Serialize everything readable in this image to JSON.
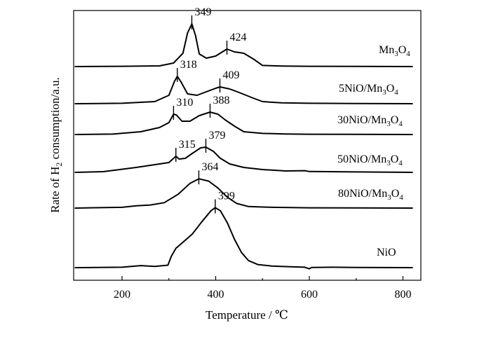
{
  "chart_data": {
    "type": "line",
    "xlabel": "Temperature / ℃",
    "ylabel_parts": [
      "Rate of H",
      "2",
      " consumption/a.u."
    ],
    "xlim": [
      100,
      830
    ],
    "xticks": [
      200,
      400,
      600,
      800
    ],
    "yticks_shown": false,
    "grid": false,
    "series": [
      {
        "name_parts": [
          "Mn",
          "3",
          "O",
          "4"
        ],
        "offset": 0,
        "peaks": [
          349,
          424
        ],
        "points": [
          [
            100,
            0
          ],
          [
            200,
            0.02
          ],
          [
            280,
            0.05
          ],
          [
            310,
            0.25
          ],
          [
            330,
            0.95
          ],
          [
            340,
            2.4
          ],
          [
            349,
            3.05
          ],
          [
            357,
            2.2
          ],
          [
            365,
            0.9
          ],
          [
            380,
            0.6
          ],
          [
            400,
            0.75
          ],
          [
            424,
            1.25
          ],
          [
            440,
            1.05
          ],
          [
            460,
            0.95
          ],
          [
            480,
            0.55
          ],
          [
            500,
            0.08
          ],
          [
            540,
            0.04
          ],
          [
            600,
            0.02
          ],
          [
            700,
            0.01
          ],
          [
            820,
            0
          ]
        ]
      },
      {
        "name_parts": [
          "5NiO/Mn",
          "3",
          "O",
          "4"
        ],
        "offset": 0,
        "peaks": [
          318,
          409
        ],
        "points": [
          [
            100,
            0
          ],
          [
            200,
            0.03
          ],
          [
            270,
            0.15
          ],
          [
            300,
            0.6
          ],
          [
            312,
            1.6
          ],
          [
            318,
            1.95
          ],
          [
            326,
            1.55
          ],
          [
            340,
            0.7
          ],
          [
            360,
            0.6
          ],
          [
            380,
            0.85
          ],
          [
            400,
            1.1
          ],
          [
            409,
            1.2
          ],
          [
            430,
            1.05
          ],
          [
            450,
            0.8
          ],
          [
            480,
            0.4
          ],
          [
            500,
            0.15
          ],
          [
            540,
            0.06
          ],
          [
            600,
            0.03
          ],
          [
            700,
            0.01
          ],
          [
            820,
            0
          ]
        ]
      },
      {
        "name_parts": [
          "30NiO/Mn",
          "3",
          "O",
          "4"
        ],
        "offset": 0,
        "peaks": [
          310,
          388
        ],
        "points": [
          [
            100,
            0
          ],
          [
            180,
            0.03
          ],
          [
            240,
            0.2
          ],
          [
            280,
            0.5
          ],
          [
            300,
            0.85
          ],
          [
            310,
            1.45
          ],
          [
            316,
            1.4
          ],
          [
            328,
            0.95
          ],
          [
            345,
            0.95
          ],
          [
            365,
            1.35
          ],
          [
            388,
            1.6
          ],
          [
            405,
            1.45
          ],
          [
            420,
            1.05
          ],
          [
            440,
            0.6
          ],
          [
            460,
            0.2
          ],
          [
            500,
            0.08
          ],
          [
            550,
            0.04
          ],
          [
            600,
            0.02
          ],
          [
            700,
            0.01
          ],
          [
            820,
            0
          ]
        ]
      },
      {
        "name_parts": [
          "50NiO/Mn",
          "3",
          "O",
          "4"
        ],
        "offset": 0,
        "peaks": [
          315,
          379
        ],
        "points": [
          [
            100,
            0
          ],
          [
            160,
            0.05
          ],
          [
            230,
            0.35
          ],
          [
            270,
            0.55
          ],
          [
            300,
            0.7
          ],
          [
            315,
            1.15
          ],
          [
            322,
            0.95
          ],
          [
            335,
            1.0
          ],
          [
            350,
            1.35
          ],
          [
            368,
            1.75
          ],
          [
            379,
            1.8
          ],
          [
            395,
            1.5
          ],
          [
            410,
            1.0
          ],
          [
            430,
            0.6
          ],
          [
            460,
            0.35
          ],
          [
            500,
            0.2
          ],
          [
            550,
            0.1
          ],
          [
            590,
            0.12
          ],
          [
            600,
            0.06
          ],
          [
            700,
            0.03
          ],
          [
            820,
            0
          ]
        ]
      },
      {
        "name_parts": [
          "80NiO/Mn",
          "3",
          "O",
          "4"
        ],
        "offset": 0,
        "peaks": [
          364
        ],
        "points": [
          [
            100,
            0
          ],
          [
            200,
            0.05
          ],
          [
            230,
            0.15
          ],
          [
            260,
            0.2
          ],
          [
            290,
            0.35
          ],
          [
            320,
            0.9
          ],
          [
            345,
            1.6
          ],
          [
            364,
            1.9
          ],
          [
            385,
            1.75
          ],
          [
            405,
            1.3
          ],
          [
            425,
            0.7
          ],
          [
            445,
            0.3
          ],
          [
            470,
            0.1
          ],
          [
            520,
            0.05
          ],
          [
            600,
            0.02
          ],
          [
            700,
            0.01
          ],
          [
            820,
            0
          ]
        ]
      },
      {
        "name_parts": [
          "NiO"
        ],
        "offset": 0,
        "peaks": [
          399
        ],
        "points": [
          [
            100,
            0
          ],
          [
            200,
            0.02
          ],
          [
            240,
            0.1
          ],
          [
            270,
            0.06
          ],
          [
            298,
            0.12
          ],
          [
            305,
            0.55
          ],
          [
            315,
            0.95
          ],
          [
            330,
            1.25
          ],
          [
            350,
            1.65
          ],
          [
            370,
            2.25
          ],
          [
            390,
            2.8
          ],
          [
            399,
            2.95
          ],
          [
            410,
            2.8
          ],
          [
            425,
            2.2
          ],
          [
            440,
            1.4
          ],
          [
            455,
            0.75
          ],
          [
            470,
            0.35
          ],
          [
            490,
            0.15
          ],
          [
            520,
            0.08
          ],
          [
            560,
            0.04
          ],
          [
            590,
            0.02
          ],
          [
            600,
            -0.06
          ],
          [
            605,
            0.01
          ],
          [
            650,
            0.02
          ],
          [
            700,
            0.01
          ],
          [
            820,
            0
          ]
        ]
      }
    ]
  }
}
